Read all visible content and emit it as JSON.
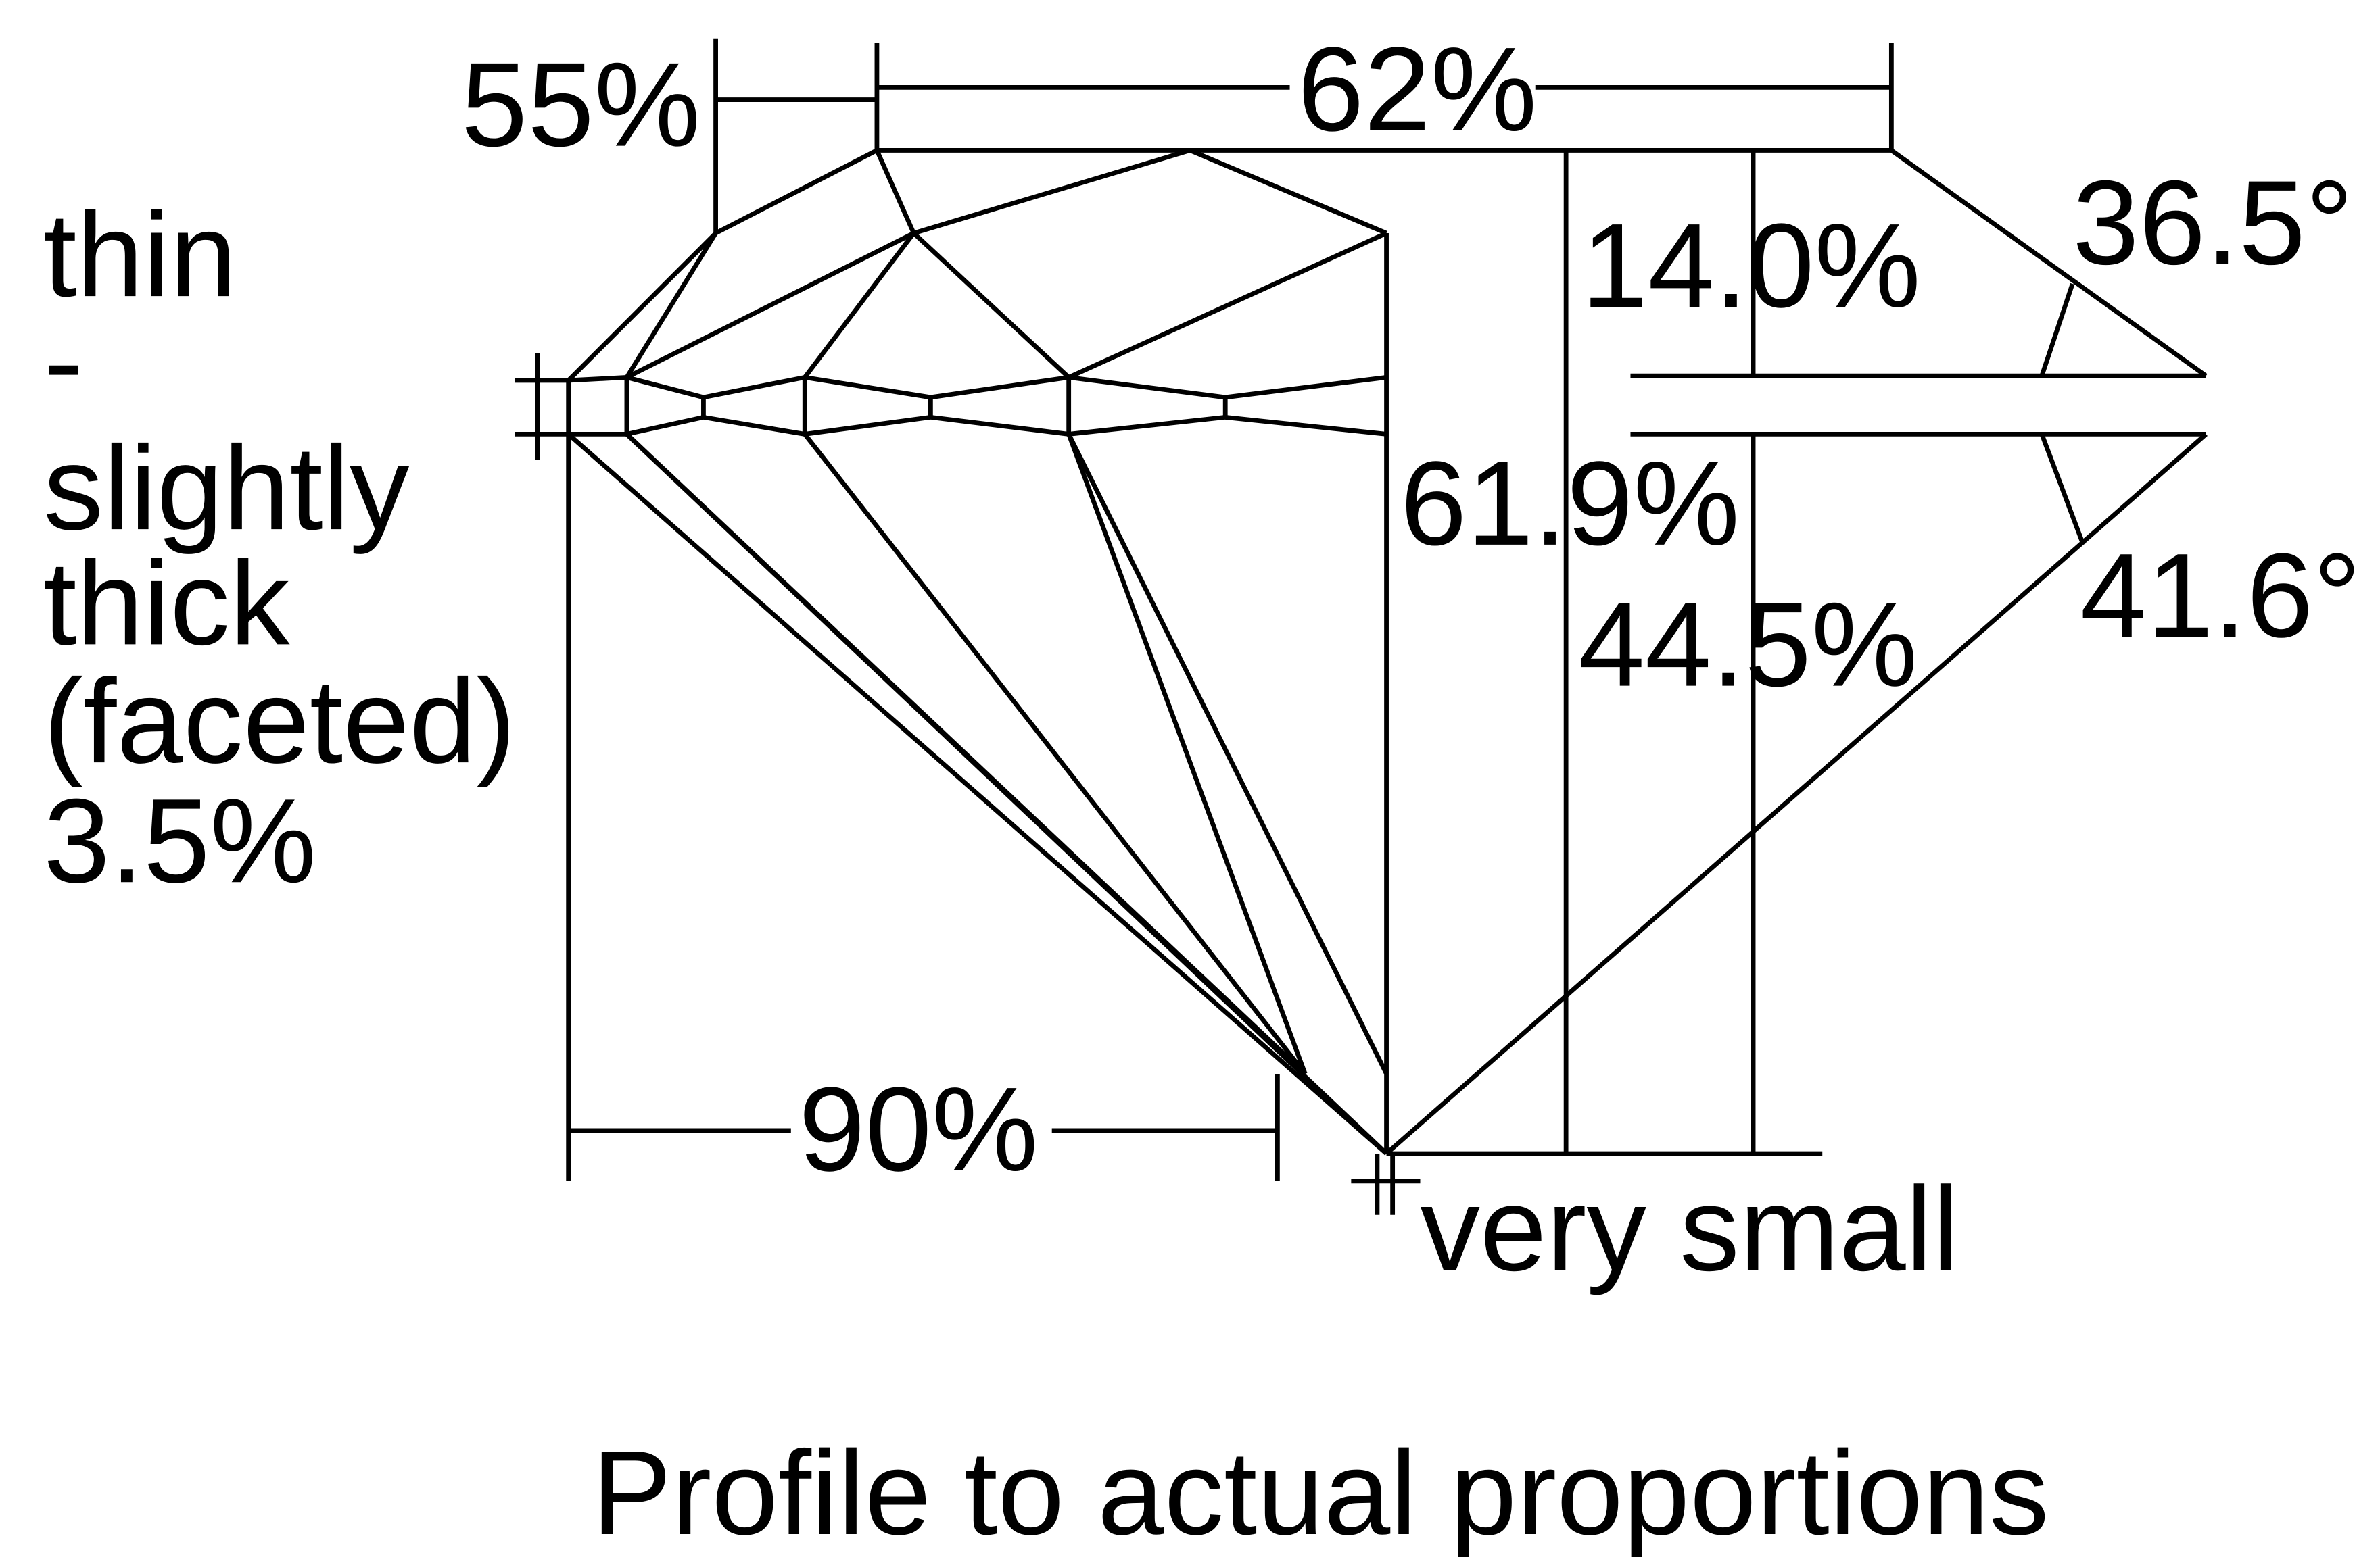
{
  "labels": {
    "star": "55%",
    "table": "62%",
    "crown_height": "14.0%",
    "crown_angle": "36.5°",
    "total_depth": "61.9%",
    "pavilion_depth": "44.5%",
    "pavilion_angle": "41.6°",
    "lower_half": "90%",
    "culet": "very small"
  },
  "girdle": [
    "thin",
    "-",
    "slightly",
    "thick",
    "(faceted)",
    "3.5%"
  ],
  "caption": "Profile to actual proportions"
}
